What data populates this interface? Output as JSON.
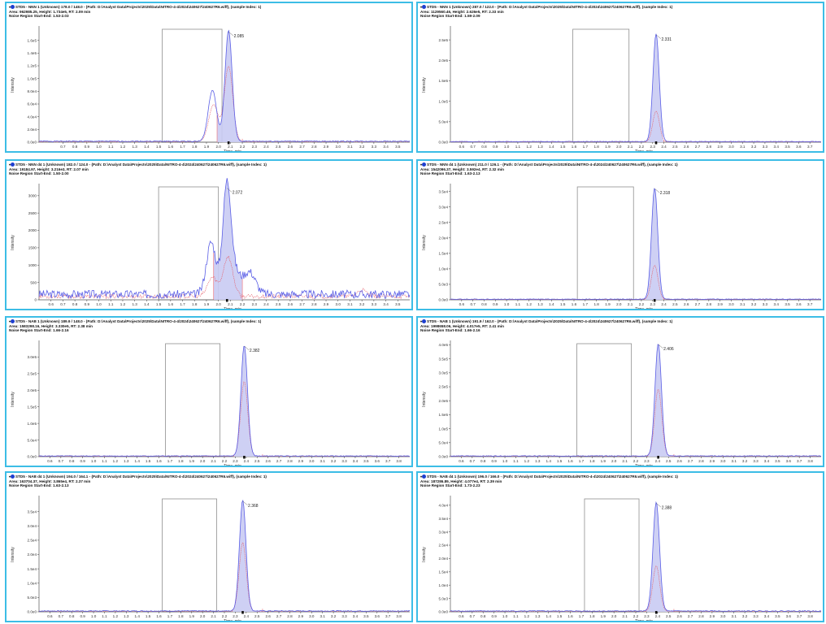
{
  "colors": {
    "sample_trace": "#5b5fe6",
    "fill": "#c9cbf3",
    "reference_trace": "#e5606c",
    "border": "#3cbde6",
    "region": "#8f8f8f"
  },
  "chart_data": [
    {
      "type": "line",
      "title": "STD5 - NNN 1 (Unknown) 178.0 / 148.0 - (Path: D:\\Analyst Data\\Projects\\2025\\Data\\NITRO-4-4\\2024\\240627\\240627R6.wiff), (sample Index: 1)",
      "area_line": "Area: 962985.25, Height: 1.734e5, RT: 2.09 min",
      "noise_line": "Noise Region Start-End: 1.53-2.03",
      "xlabel": "Time, min",
      "ylabel": "Intensity",
      "xlim": [
        0.5,
        3.6
      ],
      "ylim": [
        0,
        180000
      ],
      "x_ticks": [
        0.7,
        0.8,
        0.9,
        1.0,
        1.1,
        1.2,
        1.3,
        1.4,
        1.5,
        1.6,
        1.7,
        1.8,
        1.9,
        2.0,
        2.1,
        2.2,
        2.3,
        2.4,
        2.5,
        2.6,
        2.7,
        2.8,
        2.9,
        3.0,
        3.1,
        3.2,
        3.3,
        3.4,
        3.5
      ],
      "y_ticks": [
        0,
        20000,
        40000,
        60000,
        80000,
        100000,
        120000,
        140000,
        160000
      ],
      "y_tick_labels": [
        "0.0e0",
        "2.0e4",
        "4.0e4",
        "6.0e4",
        "8.0e4",
        "1.0e5",
        "1.2e5",
        "1.4e5",
        "1.6e5"
      ],
      "peak_label": "2.085",
      "peak_rt": 2.085,
      "peak_height": 173400,
      "noise_region": [
        1.53,
        2.03
      ],
      "peaks": [
        {
          "rt": 2.085,
          "height": 173400,
          "width": 0.03
        },
        {
          "rt": 1.95,
          "height": 80000,
          "width": 0.035
        }
      ],
      "reference_peaks": [
        {
          "rt": 2.085,
          "height": 118000,
          "width": 0.035
        },
        {
          "rt": 1.96,
          "height": 58000,
          "width": 0.04
        }
      ],
      "baseline": 1500,
      "noise_amp": 800,
      "seed": 1,
      "integration_end": 2.2,
      "shade_peaks": 2
    },
    {
      "type": "line",
      "title": "STD5 - NNN 1 (Unknown) 287.0 / 122.0 - (Path: D:\\Analyst Data\\Projects\\2025\\Data\\NITRO-4-4\\2024\\240627\\240627R6.wiff), (sample Index: 1)",
      "area_line": "Area: 1129560.46, Height: 2.626e5, RT: 2.33 min",
      "noise_line": "Noise Region Start-End: 1.59-2.09",
      "xlabel": "Time, min",
      "ylabel": "Intensity",
      "xlim": [
        0.5,
        3.8
      ],
      "ylim": [
        0,
        280000
      ],
      "x_ticks": [
        0.6,
        0.7,
        0.8,
        0.9,
        1.0,
        1.1,
        1.2,
        1.3,
        1.4,
        1.5,
        1.6,
        1.7,
        1.8,
        1.9,
        2.0,
        2.1,
        2.2,
        2.3,
        2.4,
        2.5,
        2.6,
        2.7,
        2.8,
        2.9,
        3.0,
        3.1,
        3.2,
        3.3,
        3.4,
        3.5,
        3.6,
        3.7
      ],
      "y_ticks": [
        0,
        50000,
        100000,
        150000,
        200000,
        250000
      ],
      "y_tick_labels": [
        "0.0e0",
        "5.0e4",
        "1.0e5",
        "1.5e5",
        "2.0e5",
        "2.5e5"
      ],
      "peak_label": "2.331",
      "peak_rt": 2.331,
      "peak_height": 262600,
      "noise_region": [
        1.59,
        2.09
      ],
      "peaks": [
        {
          "rt": 2.331,
          "height": 262600,
          "width": 0.028
        }
      ],
      "reference_peaks": [
        {
          "rt": 2.331,
          "height": 75000,
          "width": 0.03
        }
      ],
      "baseline": 1500,
      "noise_amp": 700,
      "seed": 2,
      "integration_end": 2.4,
      "shade_peaks": 1
    },
    {
      "type": "line",
      "title": "STD5 - NNN d4 1 (Unknown) 182.0 / 124.0 - (Path: D:\\Analyst Data\\Projects\\2025\\Data\\NITRO-4-4\\2024\\240627\\240627R6.wiff), (sample Index: 1)",
      "area_line": "Area: 19184.97, Height: 3.216e3, RT: 2.07 min",
      "noise_line": "Noise Region Start-End: 1.50-2.00",
      "xlabel": "Time, min",
      "ylabel": "Intensity",
      "xlim": [
        0.5,
        3.6
      ],
      "ylim": [
        0,
        3300
      ],
      "x_ticks": [
        0.6,
        0.7,
        0.8,
        0.9,
        1.0,
        1.1,
        1.2,
        1.3,
        1.4,
        1.5,
        1.6,
        1.7,
        1.8,
        1.9,
        2.0,
        2.1,
        2.2,
        2.3,
        2.4,
        2.5,
        2.6,
        2.7,
        2.8,
        2.9,
        3.0,
        3.1,
        3.2,
        3.3,
        3.4,
        3.5
      ],
      "y_ticks": [
        0,
        500,
        1000,
        1500,
        2000,
        2500,
        3000
      ],
      "y_tick_labels": [
        "0",
        "500",
        "1000",
        "1500",
        "2000",
        "2500",
        "3000"
      ],
      "peak_label": "2.072",
      "peak_rt": 2.072,
      "peak_height": 3216,
      "noise_region": [
        1.5,
        2.0
      ],
      "peaks": [
        {
          "rt": 2.072,
          "height": 3216,
          "width": 0.035
        },
        {
          "rt": 1.94,
          "height": 1500,
          "width": 0.04
        },
        {
          "rt": 2.26,
          "height": 650,
          "width": 0.05
        },
        {
          "rt": 2.15,
          "height": 500,
          "width": 0.04
        }
      ],
      "reference_peaks": [
        {
          "rt": 2.08,
          "height": 1150,
          "width": 0.04
        },
        {
          "rt": 1.95,
          "height": 550,
          "width": 0.04
        },
        {
          "rt": 3.2,
          "height": 180,
          "width": 0.04
        }
      ],
      "baseline": 160,
      "noise_amp": 120,
      "seed": 3,
      "integration_end": 2.2,
      "shade_peaks": 1
    },
    {
      "type": "line",
      "title": "STD5 - NNN d4 1 (Unknown) 211.0 / 126.1 - (Path: D:\\Analyst Data\\Projects\\2025\\Data\\NITRO-4-4\\2024\\240627\\240627R6.wiff), (sample Index: 1)",
      "area_line": "Area: 1542096.37, Height: 3.592e4, RT: 2.32 min",
      "noise_line": "Noise Region Start-End: 1.63-2.13",
      "xlabel": "Time, min",
      "ylabel": "Intensity",
      "xlim": [
        0.5,
        3.8
      ],
      "ylim": [
        0,
        37000
      ],
      "x_ticks": [
        0.6,
        0.7,
        0.8,
        0.9,
        1.0,
        1.1,
        1.2,
        1.3,
        1.4,
        1.5,
        1.6,
        1.7,
        1.8,
        1.9,
        2.0,
        2.1,
        2.2,
        2.3,
        2.4,
        2.5,
        2.6,
        2.7,
        2.8,
        2.9,
        3.0,
        3.1,
        3.2,
        3.3,
        3.4,
        3.5,
        3.6,
        3.7
      ],
      "y_ticks": [
        0,
        5000,
        10000,
        15000,
        20000,
        25000,
        30000,
        35000
      ],
      "y_tick_labels": [
        "0.0e0",
        "5.0e3",
        "1.0e4",
        "1.5e4",
        "2.0e4",
        "2.5e4",
        "3.0e4",
        "3.5e4"
      ],
      "peak_label": "2.318",
      "peak_rt": 2.318,
      "peak_height": 35920,
      "noise_region": [
        1.63,
        2.13
      ],
      "peaks": [
        {
          "rt": 2.318,
          "height": 35920,
          "width": 0.028
        }
      ],
      "reference_peaks": [
        {
          "rt": 2.318,
          "height": 11000,
          "width": 0.03
        }
      ],
      "baseline": 200,
      "noise_amp": 100,
      "seed": 4,
      "integration_end": 2.4,
      "shade_peaks": 1
    },
    {
      "type": "line",
      "title": "STD5 - NAB 1 (Unknown) 189.9 / 148.0 - (Path: D:\\Analyst Data\\Projects\\2025\\Data\\NITRO-4-4\\2024\\240627\\240627R6.wiff), (sample Index: 1)",
      "area_line": "Area: 1583298.16, Height: 3.330e5, RT: 2.38 min",
      "noise_line": "Noise Region Start-End: 1.66-2.16",
      "xlabel": "Time, min",
      "ylabel": "Intensity",
      "xlim": [
        0.5,
        3.9
      ],
      "ylim": [
        0,
        345000
      ],
      "x_ticks": [
        0.6,
        0.7,
        0.8,
        0.9,
        1.0,
        1.1,
        1.2,
        1.3,
        1.4,
        1.5,
        1.6,
        1.7,
        1.8,
        1.9,
        2.0,
        2.1,
        2.2,
        2.3,
        2.4,
        2.5,
        2.6,
        2.7,
        2.8,
        2.9,
        3.0,
        3.1,
        3.2,
        3.3,
        3.4,
        3.5,
        3.6,
        3.7,
        3.8
      ],
      "y_ticks": [
        0,
        50000,
        100000,
        150000,
        200000,
        250000,
        300000
      ],
      "y_tick_labels": [
        "0.0e0",
        "5.0e4",
        "1.0e5",
        "1.5e5",
        "2.0e5",
        "2.5e5",
        "3.0e5"
      ],
      "peak_label": "2.382",
      "peak_rt": 2.382,
      "peak_height": 333000,
      "noise_region": [
        1.66,
        2.16
      ],
      "peaks": [
        {
          "rt": 2.382,
          "height": 333000,
          "width": 0.03
        }
      ],
      "reference_peaks": [
        {
          "rt": 2.382,
          "height": 225000,
          "width": 0.032
        }
      ],
      "baseline": 2000,
      "noise_amp": 1000,
      "seed": 5,
      "integration_end": 2.55,
      "shade_peaks": 1
    },
    {
      "type": "line",
      "title": "STD5 - NAB 1 (Unknown) 191.9 / 162.0 - (Path: D:\\Analyst Data\\Projects\\2025\\Data\\NITRO-4-4\\2024\\240627\\240627R6.wiff), (sample Index: 1)",
      "area_line": "Area: 1998658.06, Height: 4.017e5, RT: 2.41 min",
      "noise_line": "Noise Region Start-End: 1.66-2.16",
      "xlabel": "Time, min",
      "ylabel": "Intensity",
      "xlim": [
        0.5,
        3.9
      ],
      "ylim": [
        0,
        410000
      ],
      "x_ticks": [
        0.6,
        0.7,
        0.8,
        0.9,
        1.0,
        1.1,
        1.2,
        1.3,
        1.4,
        1.5,
        1.6,
        1.7,
        1.8,
        1.9,
        2.0,
        2.1,
        2.2,
        2.3,
        2.4,
        2.5,
        2.6,
        2.7,
        2.8,
        2.9,
        3.0,
        3.1,
        3.2,
        3.3,
        3.4,
        3.5,
        3.6,
        3.7,
        3.8
      ],
      "y_ticks": [
        0,
        50000,
        100000,
        150000,
        200000,
        250000,
        300000,
        350000,
        400000
      ],
      "y_tick_labels": [
        "0.0e0",
        "5.0e4",
        "1.0e5",
        "1.5e5",
        "2.0e5",
        "2.5e5",
        "3.0e5",
        "3.5e5",
        "4.0e5"
      ],
      "peak_label": "2.406",
      "peak_rt": 2.406,
      "peak_height": 401700,
      "noise_region": [
        1.66,
        2.16
      ],
      "peaks": [
        {
          "rt": 2.406,
          "height": 401700,
          "width": 0.03
        }
      ],
      "reference_peaks": [
        {
          "rt": 2.406,
          "height": 240000,
          "width": 0.032
        }
      ],
      "baseline": 2500,
      "noise_amp": 1200,
      "seed": 6,
      "integration_end": 2.55,
      "shade_peaks": 1
    },
    {
      "type": "line",
      "title": "STD5 - NAB d4 1 (Unknown) 194.0 / 164.1 - (Path: D:\\Analyst Data\\Projects\\2025\\Data\\NITRO-4-4\\2024\\240627\\240627R6.wiff), (sample Index: 1)",
      "area_line": "Area: 163704.37, Height: 3.865e4, RT: 2.37 min",
      "noise_line": "Noise Region Start-End: 1.63-2.13",
      "xlabel": "Time, min",
      "ylabel": "Intensity",
      "xlim": [
        0.5,
        3.9
      ],
      "ylim": [
        0,
        40000
      ],
      "x_ticks": [
        0.6,
        0.7,
        0.8,
        0.9,
        1.0,
        1.1,
        1.2,
        1.3,
        1.4,
        1.5,
        1.6,
        1.7,
        1.8,
        1.9,
        2.0,
        2.1,
        2.2,
        2.3,
        2.4,
        2.5,
        2.6,
        2.7,
        2.8,
        2.9,
        3.0,
        3.1,
        3.2,
        3.3,
        3.4,
        3.5,
        3.6,
        3.7,
        3.8
      ],
      "y_ticks": [
        0,
        5000,
        10000,
        15000,
        20000,
        25000,
        30000,
        35000
      ],
      "y_tick_labels": [
        "0.0e0",
        "5.0e3",
        "1.0e4",
        "1.5e4",
        "2.0e4",
        "2.5e4",
        "3.0e4",
        "3.5e4"
      ],
      "peak_label": "2.368",
      "peak_rt": 2.368,
      "peak_height": 38650,
      "noise_region": [
        1.63,
        2.13
      ],
      "peaks": [
        {
          "rt": 2.368,
          "height": 38650,
          "width": 0.03
        }
      ],
      "reference_peaks": [
        {
          "rt": 2.368,
          "height": 24000,
          "width": 0.032
        }
      ],
      "baseline": 300,
      "noise_amp": 150,
      "seed": 7,
      "integration_end": 2.55,
      "shade_peaks": 1
    },
    {
      "type": "line",
      "title": "STD5 - NAB d4 1 (Unknown) 196.0 / 166.0 - (Path: D:\\Analyst Data\\Projects\\2025\\Data\\NITRO-4-4\\2024\\240627\\240627R6.wiff), (sample Index: 1)",
      "area_line": "Area: 187286.89, Height: 4.077e4, RT: 2.39 min",
      "noise_line": "Noise Region Start-End: 1.73-2.23",
      "xlabel": "Time, min",
      "ylabel": "Intensity",
      "xlim": [
        0.5,
        3.9
      ],
      "ylim": [
        0,
        43000
      ],
      "x_ticks": [
        0.6,
        0.7,
        0.8,
        0.9,
        1.0,
        1.1,
        1.2,
        1.3,
        1.4,
        1.5,
        1.6,
        1.7,
        1.8,
        1.9,
        2.0,
        2.1,
        2.2,
        2.3,
        2.4,
        2.5,
        2.6,
        2.7,
        2.8,
        2.9,
        3.0,
        3.1,
        3.2,
        3.3,
        3.4,
        3.5,
        3.6,
        3.7,
        3.8
      ],
      "y_ticks": [
        0,
        5000,
        10000,
        15000,
        20000,
        25000,
        30000,
        35000,
        40000
      ],
      "y_tick_labels": [
        "0.0e0",
        "5.0e3",
        "1.0e4",
        "1.5e4",
        "2.0e4",
        "2.5e4",
        "3.0e4",
        "3.5e4",
        "4.0e4"
      ],
      "peak_label": "2.388",
      "peak_rt": 2.388,
      "peak_height": 40770,
      "noise_region": [
        1.73,
        2.23
      ],
      "peaks": [
        {
          "rt": 2.388,
          "height": 40770,
          "width": 0.03
        }
      ],
      "reference_peaks": [
        {
          "rt": 2.388,
          "height": 17000,
          "width": 0.032
        }
      ],
      "baseline": 300,
      "noise_amp": 150,
      "seed": 8,
      "integration_end": 2.55,
      "shade_peaks": 1
    }
  ]
}
